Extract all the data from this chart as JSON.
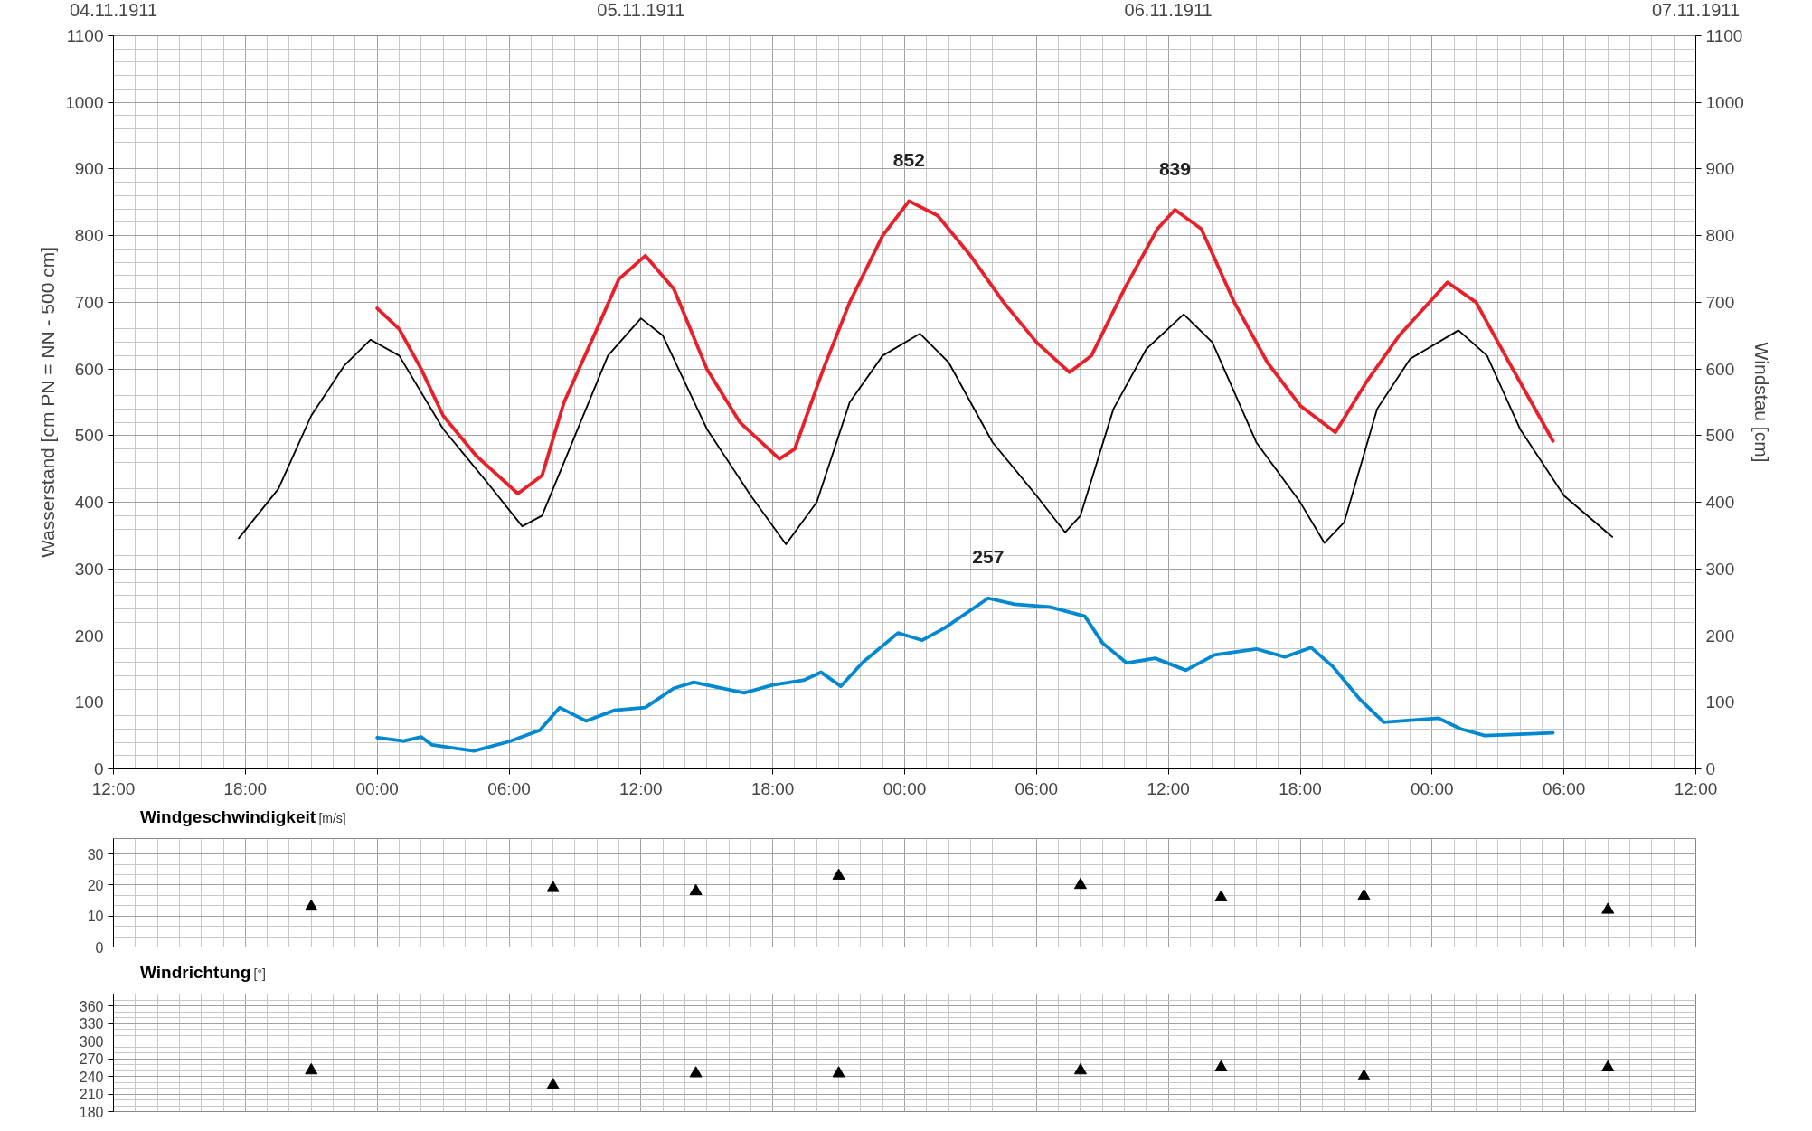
{
  "chart_data": [
    {
      "type": "line",
      "ylabel": "Wasserstand [cm PN = NN - 500 cm]",
      "y2label": "Windstau [cm]",
      "xlim": [
        "1911-11-04T12:00",
        "1911-11-07T12:00"
      ],
      "xticks": [
        {
          "value": "1911-11-04T12:00",
          "label": "12:00"
        },
        {
          "value": "1911-11-04T18:00",
          "label": "18:00"
        },
        {
          "value": "1911-11-05T00:00",
          "label": "00:00"
        },
        {
          "value": "1911-11-05T06:00",
          "label": "06:00"
        },
        {
          "value": "1911-11-05T12:00",
          "label": "12:00"
        },
        {
          "value": "1911-11-05T18:00",
          "label": "18:00"
        },
        {
          "value": "1911-11-06T00:00",
          "label": "00:00"
        },
        {
          "value": "1911-11-06T06:00",
          "label": "06:00"
        },
        {
          "value": "1911-11-06T12:00",
          "label": "12:00"
        },
        {
          "value": "1911-11-06T18:00",
          "label": "18:00"
        },
        {
          "value": "1911-11-07T00:00",
          "label": "00:00"
        },
        {
          "value": "1911-11-07T06:00",
          "label": "06:00"
        },
        {
          "value": "1911-11-07T12:00",
          "label": "12:00"
        }
      ],
      "x2lim": [
        "1911-11-04T12:00",
        "1911-11-07T12:00"
      ],
      "x2ticks": [
        {
          "value": "1911-11-04T12:00",
          "label": "04.11.1911"
        },
        {
          "value": "1911-11-05T12:00",
          "label": "05.11.1911"
        },
        {
          "value": "1911-11-06T12:00",
          "label": "06.11.1911"
        },
        {
          "value": "1911-11-07T12:00",
          "label": "07.11.1911"
        }
      ],
      "ylim": [
        0,
        1100
      ],
      "yticks": [
        0,
        100,
        200,
        300,
        400,
        500,
        600,
        700,
        800,
        900,
        1000,
        1100
      ],
      "y2lim": [
        0,
        1100
      ],
      "y2ticks": [
        0,
        100,
        200,
        300,
        400,
        500,
        600,
        700,
        800,
        900,
        1000,
        1100
      ],
      "grid": true,
      "line_style": "solid",
      "series": [
        {
          "color": "#000000",
          "x": [
            "1911-11-04T17:42",
            "1911-11-04T19:30",
            "1911-11-04T21:00",
            "1911-11-04T22:30",
            "1911-11-04T23:42",
            "1911-11-05T01:00",
            "1911-11-05T03:00",
            "1911-11-05T05:00",
            "1911-11-05T06:36",
            "1911-11-05T07:30",
            "1911-11-05T09:00",
            "1911-11-05T10:30",
            "1911-11-05T12:00",
            "1911-11-05T13:00",
            "1911-11-05T15:00",
            "1911-11-05T17:00",
            "1911-11-05T18:36",
            "1911-11-05T20:00",
            "1911-11-05T21:30",
            "1911-11-05T23:00",
            "1911-11-06T00:42",
            "1911-11-06T02:00",
            "1911-11-06T04:00",
            "1911-11-06T06:00",
            "1911-11-06T07:18",
            "1911-11-06T08:00",
            "1911-11-06T09:30",
            "1911-11-06T11:00",
            "1911-11-06T12:42",
            "1911-11-06T14:00",
            "1911-11-06T16:00",
            "1911-11-06T18:00",
            "1911-11-06T19:06",
            "1911-11-06T20:00",
            "1911-11-06T21:30",
            "1911-11-06T23:00",
            "1911-11-07T01:12",
            "1911-11-07T02:30",
            "1911-11-07T04:00",
            "1911-11-07T06:00",
            "1911-11-07T08:12"
          ],
          "values": [
            346,
            420,
            530,
            605,
            644,
            620,
            510,
            430,
            364,
            380,
            500,
            620,
            676,
            650,
            510,
            410,
            337,
            400,
            550,
            620,
            653,
            610,
            490,
            410,
            355,
            380,
            540,
            630,
            682,
            640,
            490,
            400,
            339,
            370,
            540,
            615,
            658,
            620,
            510,
            410,
            348
          ]
        },
        {
          "color": "#e8202a",
          "x": [
            "1911-11-05T00:00",
            "1911-11-05T01:00",
            "1911-11-05T02:00",
            "1911-11-05T03:00",
            "1911-11-05T04:30",
            "1911-11-05T06:24",
            "1911-11-05T07:30",
            "1911-11-05T08:30",
            "1911-11-05T10:00",
            "1911-11-05T11:00",
            "1911-11-05T12:12",
            "1911-11-05T13:30",
            "1911-11-05T15:00",
            "1911-11-05T16:30",
            "1911-11-05T18:18",
            "1911-11-05T19:00",
            "1911-11-05T20:18",
            "1911-11-05T21:30",
            "1911-11-05T23:00",
            "1911-11-06T00:12",
            "1911-11-06T01:30",
            "1911-11-06T03:00",
            "1911-11-06T04:30",
            "1911-11-06T06:00",
            "1911-11-06T07:30",
            "1911-11-06T08:30",
            "1911-11-06T10:00",
            "1911-11-06T11:30",
            "1911-11-06T12:18",
            "1911-11-06T13:30",
            "1911-11-06T15:00",
            "1911-11-06T16:30",
            "1911-11-06T18:00",
            "1911-11-06T19:36",
            "1911-11-06T21:00",
            "1911-11-06T22:30",
            "1911-11-07T00:42",
            "1911-11-07T02:00",
            "1911-11-07T03:30",
            "1911-11-07T05:30"
          ],
          "values": [
            691,
            660,
            600,
            530,
            470,
            413,
            440,
            550,
            660,
            735,
            770,
            720,
            600,
            520,
            465,
            480,
            600,
            700,
            800,
            852,
            830,
            770,
            700,
            640,
            595,
            620,
            720,
            810,
            839,
            810,
            700,
            610,
            545,
            505,
            580,
            650,
            730,
            700,
            610,
            492
          ]
        },
        {
          "color": "#0088d0",
          "x": [
            "1911-11-05T00:00",
            "1911-11-05T01:12",
            "1911-11-05T02:00",
            "1911-11-05T02:30",
            "1911-11-05T04:24",
            "1911-11-05T06:00",
            "1911-11-05T07:24",
            "1911-11-05T08:18",
            "1911-11-05T09:30",
            "1911-11-05T10:48",
            "1911-11-05T12:12",
            "1911-11-05T13:30",
            "1911-11-05T14:24",
            "1911-11-05T16:42",
            "1911-11-05T18:00",
            "1911-11-05T19:24",
            "1911-11-05T20:12",
            "1911-11-05T21:06",
            "1911-11-05T22:06",
            "1911-11-05T23:42",
            "1911-11-06T00:48",
            "1911-11-06T01:48",
            "1911-11-06T03:48",
            "1911-11-06T05:00",
            "1911-11-06T06:36",
            "1911-11-06T08:12",
            "1911-11-06T09:00",
            "1911-11-06T10:06",
            "1911-11-06T11:24",
            "1911-11-06T12:48",
            "1911-11-06T14:06",
            "1911-11-06T16:00",
            "1911-11-06T17:18",
            "1911-11-06T18:30",
            "1911-11-06T19:30",
            "1911-11-06T20:42",
            "1911-11-06T21:48",
            "1911-11-07T00:18",
            "1911-11-07T01:18",
            "1911-11-07T02:24",
            "1911-11-07T04:00",
            "1911-11-07T05:30"
          ],
          "values": [
            47,
            42,
            48,
            36,
            27,
            41,
            58,
            92,
            72,
            88,
            92,
            121,
            130,
            114,
            126,
            133,
            145,
            124,
            160,
            204,
            193,
            211,
            256,
            247,
            243,
            229,
            189,
            159,
            166,
            148,
            171,
            180,
            168,
            182,
            153,
            105,
            70,
            76,
            60,
            50,
            52,
            54
          ]
        }
      ],
      "annotations": [
        {
          "text": "852",
          "x": "1911-11-06T00:12",
          "y": 852
        },
        {
          "text": "839",
          "x": "1911-11-06T12:18",
          "y": 839
        },
        {
          "text": "257",
          "x": "1911-11-06T03:48",
          "y": 257
        }
      ]
    },
    {
      "type": "scatter",
      "title": "Windgeschwindigkeit",
      "ylabel": "[m/s]",
      "xlim": [
        "1911-11-04T12:00",
        "1911-11-07T12:00"
      ],
      "ylim": [
        0,
        35
      ],
      "yticks": [
        0,
        10,
        20,
        30
      ],
      "tick_labels": "y",
      "grid": true,
      "marker": "triangle",
      "series": [
        {
          "color": "#000000",
          "x": [
            "1911-11-04T21:00",
            "1911-11-05T08:00",
            "1911-11-05T14:30",
            "1911-11-05T21:00",
            "1911-11-06T08:00",
            "1911-11-06T14:24",
            "1911-11-06T20:54",
            "1911-11-07T08:00"
          ],
          "values": [
            13,
            19,
            18,
            23,
            20,
            16,
            16.5,
            12
          ]
        }
      ]
    },
    {
      "type": "scatter",
      "title": "Windrichtung",
      "ylabel": "[°]",
      "xlim": [
        "1911-11-04T12:00",
        "1911-11-07T12:00"
      ],
      "ylim": [
        180,
        380
      ],
      "yticks": [
        180,
        210,
        240,
        270,
        300,
        330,
        360
      ],
      "tick_labels": "y",
      "grid": true,
      "marker": "triangle",
      "series": [
        {
          "color": "#000000",
          "x": [
            "1911-11-04T21:00",
            "1911-11-05T08:00",
            "1911-11-05T14:30",
            "1911-11-05T21:00",
            "1911-11-06T08:00",
            "1911-11-06T14:24",
            "1911-11-06T20:54",
            "1911-11-07T08:00"
          ],
          "values": [
            250,
            225,
            245,
            245,
            250,
            255,
            240,
            255
          ]
        }
      ]
    }
  ]
}
